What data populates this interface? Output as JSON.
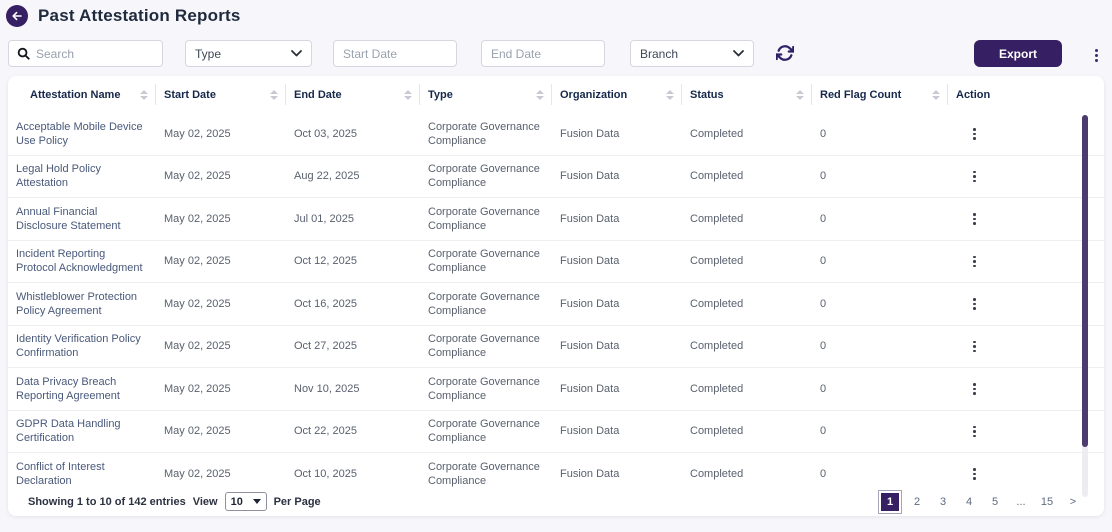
{
  "header": {
    "title": "Past Attestation Reports"
  },
  "toolbar": {
    "search_placeholder": "Search",
    "type_value": "Type",
    "start_date_placeholder": "Start Date",
    "end_date_placeholder": "End Date",
    "branch_value": "Branch",
    "export_label": "Export"
  },
  "icons": {
    "back": "arrow-left-icon",
    "search": "magnifier-icon",
    "select_chevron": "chevron-down-icon",
    "refresh": "refresh-icon",
    "more": "kebab-vertical-icon",
    "sort": "sort-arrows-icon",
    "row_action": "kebab-vertical-icon"
  },
  "table": {
    "columns": [
      {
        "label": "Attestation Name",
        "sortable": true
      },
      {
        "label": "Start Date",
        "sortable": true
      },
      {
        "label": "End Date",
        "sortable": true
      },
      {
        "label": "Type",
        "sortable": true
      },
      {
        "label": "Organization",
        "sortable": true
      },
      {
        "label": "Status",
        "sortable": true
      },
      {
        "label": "Red Flag Count",
        "sortable": true
      },
      {
        "label": "Action",
        "sortable": false
      }
    ],
    "rows": [
      {
        "name": "Acceptable Mobile Device Use Policy",
        "start_date": "May 02, 2025",
        "end_date": "Oct 03, 2025",
        "type": "Corporate Governance Compliance",
        "organization": "Fusion Data",
        "status": "Completed",
        "red_flag_count": "0"
      },
      {
        "name": "Legal Hold Policy Attestation",
        "start_date": "May 02, 2025",
        "end_date": "Aug 22, 2025",
        "type": "Corporate Governance Compliance",
        "organization": "Fusion Data",
        "status": "Completed",
        "red_flag_count": "0"
      },
      {
        "name": "Annual Financial Disclosure Statement",
        "start_date": "May 02, 2025",
        "end_date": "Jul 01, 2025",
        "type": "Corporate Governance Compliance",
        "organization": "Fusion Data",
        "status": "Completed",
        "red_flag_count": "0"
      },
      {
        "name": "Incident Reporting Protocol Acknowledgment",
        "start_date": "May 02, 2025",
        "end_date": "Oct 12, 2025",
        "type": "Corporate Governance Compliance",
        "organization": "Fusion Data",
        "status": "Completed",
        "red_flag_count": "0"
      },
      {
        "name": "Whistleblower Protection Policy Agreement",
        "start_date": "May 02, 2025",
        "end_date": "Oct 16, 2025",
        "type": "Corporate Governance Compliance",
        "organization": "Fusion Data",
        "status": "Completed",
        "red_flag_count": "0"
      },
      {
        "name": "Identity Verification Policy Confirmation",
        "start_date": "May 02, 2025",
        "end_date": "Oct 27, 2025",
        "type": "Corporate Governance Compliance",
        "organization": "Fusion Data",
        "status": "Completed",
        "red_flag_count": "0"
      },
      {
        "name": "Data Privacy Breach Reporting Agreement",
        "start_date": "May 02, 2025",
        "end_date": "Nov 10, 2025",
        "type": "Corporate Governance Compliance",
        "organization": "Fusion Data",
        "status": "Completed",
        "red_flag_count": "0"
      },
      {
        "name": "GDPR Data Handling Certification",
        "start_date": "May 02, 2025",
        "end_date": "Oct 22, 2025",
        "type": "Corporate Governance Compliance",
        "organization": "Fusion Data",
        "status": "Completed",
        "red_flag_count": "0"
      },
      {
        "name": "Conflict of Interest Declaration",
        "start_date": "May 02, 2025",
        "end_date": "Oct 10, 2025",
        "type": "Corporate Governance Compliance",
        "organization": "Fusion Data",
        "status": "Completed",
        "red_flag_count": "0"
      }
    ]
  },
  "pagination": {
    "showing_text": "Showing 1 to 10 of 142 entries",
    "view_label": "View",
    "per_page_value": "10",
    "per_page_suffix": "Per Page",
    "pages": [
      {
        "label": "1",
        "active": true
      },
      {
        "label": "2"
      },
      {
        "label": "3"
      },
      {
        "label": "4"
      },
      {
        "label": "5"
      },
      {
        "label": "..."
      },
      {
        "label": "15"
      },
      {
        "label": ">",
        "next": true
      }
    ]
  },
  "colors": {
    "accent": "#371f63",
    "scrollbar": "#4b3b6e",
    "page_background": "#f7f7fb"
  }
}
